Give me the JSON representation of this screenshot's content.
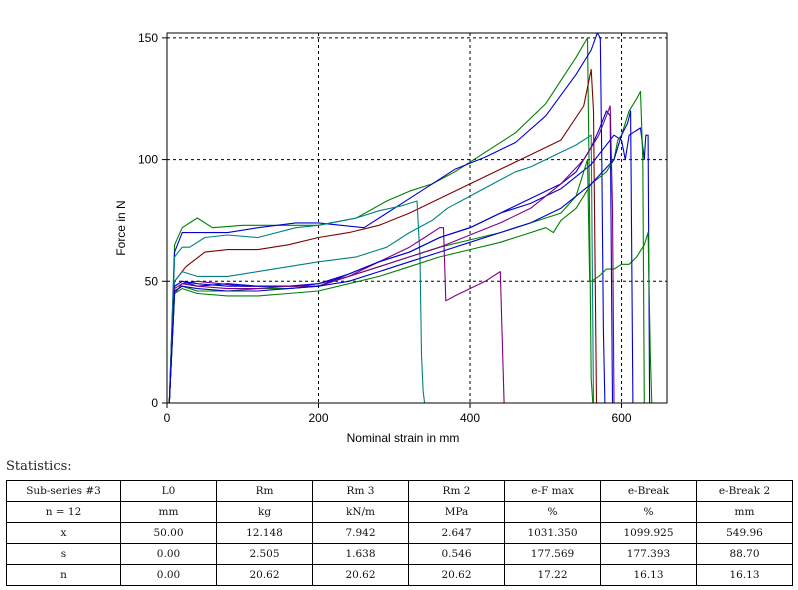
{
  "chart_data": {
    "type": "line",
    "title": "",
    "xlabel": "Nominal strain in mm",
    "ylabel": "Force in N",
    "xlim": [
      0,
      660
    ],
    "ylim": [
      0,
      152
    ],
    "xticks": [
      0,
      200,
      400,
      600
    ],
    "yticks": [
      0,
      50,
      100,
      150
    ],
    "grid": true,
    "series": [
      {
        "name": "specimen-1",
        "color": "#008000",
        "x": [
          3,
          10,
          20,
          30,
          40,
          60,
          100,
          150,
          200,
          250,
          290,
          320,
          350,
          380,
          420,
          460,
          500,
          540,
          555,
          557,
          560,
          562
        ],
        "y": [
          0,
          65,
          72,
          74,
          76,
          72,
          73,
          73,
          73,
          76,
          83,
          87,
          90,
          95,
          103,
          111,
          123,
          142,
          150,
          100,
          10,
          0
        ]
      },
      {
        "name": "specimen-2",
        "color": "#0000d0",
        "x": [
          3,
          10,
          20,
          40,
          80,
          120,
          170,
          200,
          230,
          260,
          300,
          340,
          380,
          420,
          460,
          500,
          540,
          560,
          568,
          572,
          574,
          576,
          578
        ],
        "y": [
          0,
          62,
          70,
          70,
          70,
          72,
          74,
          74,
          73,
          72,
          80,
          88,
          96,
          101,
          107,
          118,
          135,
          145,
          152,
          150,
          100,
          30,
          0
        ]
      },
      {
        "name": "specimen-3",
        "color": "#800000",
        "x": [
          3,
          10,
          25,
          50,
          80,
          120,
          160,
          200,
          240,
          280,
          320,
          360,
          400,
          440,
          480,
          520,
          550,
          560,
          563,
          565,
          567
        ],
        "y": [
          0,
          50,
          56,
          62,
          63,
          63,
          65,
          68,
          70,
          73,
          78,
          84,
          90,
          96,
          102,
          108,
          122,
          137,
          120,
          60,
          0
        ]
      },
      {
        "name": "specimen-4",
        "color": "#008080",
        "x": [
          3,
          10,
          20,
          30,
          50,
          80,
          120,
          170,
          200,
          250,
          280,
          310,
          320,
          330,
          334,
          336,
          338,
          340
        ],
        "y": [
          0,
          60,
          64,
          64,
          68,
          69,
          68,
          72,
          73,
          76,
          79,
          81,
          82,
          83,
          60,
          20,
          5,
          0
        ]
      },
      {
        "name": "specimen-5",
        "color": "#800080",
        "x": [
          3,
          10,
          20,
          40,
          70,
          100,
          130,
          170,
          200,
          240,
          280,
          320,
          340,
          360,
          365,
          368,
          380,
          420,
          440,
          445
        ],
        "y": [
          0,
          45,
          49,
          50,
          49,
          48,
          48,
          48,
          49,
          52,
          58,
          64,
          68,
          72,
          72,
          42,
          44,
          50,
          54,
          0
        ]
      },
      {
        "name": "specimen-6",
        "color": "#008080",
        "x": [
          3,
          10,
          20,
          40,
          80,
          120,
          160,
          200,
          250,
          290,
          320,
          350,
          370,
          400,
          430,
          460,
          480,
          500,
          520,
          540,
          560,
          563
        ],
        "y": [
          0,
          50,
          54,
          52,
          52,
          54,
          56,
          58,
          60,
          64,
          70,
          75,
          80,
          85,
          90,
          95,
          97,
          100,
          103,
          106,
          110,
          0
        ]
      },
      {
        "name": "specimen-7",
        "color": "#0000d0",
        "x": [
          3,
          10,
          20,
          40,
          80,
          120,
          160,
          200,
          240,
          280,
          320,
          360,
          400,
          440,
          480,
          520,
          560,
          590,
          600,
          605,
          610,
          625,
          630,
          632,
          635,
          637
        ],
        "y": [
          0,
          48,
          50,
          48,
          49,
          48,
          48,
          48,
          53,
          58,
          62,
          68,
          72,
          78,
          82,
          88,
          98,
          110,
          108,
          100,
          110,
          113,
          100,
          110,
          110,
          0
        ]
      },
      {
        "name": "specimen-8",
        "color": "#008000",
        "x": [
          3,
          10,
          20,
          40,
          80,
          120,
          160,
          200,
          240,
          280,
          320,
          360,
          400,
          440,
          480,
          520,
          540,
          550,
          555,
          558,
          560,
          570,
          580,
          590,
          600,
          610,
          620,
          630,
          635,
          638,
          640
        ],
        "y": [
          0,
          46,
          48,
          46,
          46,
          47,
          47,
          48,
          52,
          56,
          60,
          64,
          67,
          70,
          74,
          78,
          85,
          95,
          100,
          50,
          50,
          52,
          55,
          55,
          57,
          57,
          60,
          65,
          70,
          20,
          0
        ]
      },
      {
        "name": "specimen-9",
        "color": "#0000d0",
        "x": [
          3,
          10,
          20,
          40,
          80,
          120,
          160,
          200,
          240,
          280,
          320,
          360,
          400,
          440,
          480,
          520,
          540,
          560,
          570,
          580,
          585,
          588
        ],
        "y": [
          0,
          48,
          50,
          49,
          48,
          48,
          48,
          49,
          53,
          58,
          62,
          68,
          72,
          78,
          84,
          90,
          95,
          105,
          112,
          120,
          118,
          0
        ]
      },
      {
        "name": "specimen-10",
        "color": "#800080",
        "x": [
          3,
          10,
          20,
          40,
          80,
          120,
          160,
          200,
          240,
          280,
          320,
          360,
          400,
          440,
          480,
          520,
          550,
          570,
          580,
          585,
          588,
          590
        ],
        "y": [
          0,
          47,
          49,
          48,
          47,
          47,
          48,
          48,
          52,
          56,
          60,
          64,
          69,
          74,
          80,
          90,
          100,
          110,
          118,
          122,
          80,
          0
        ]
      },
      {
        "name": "specimen-11",
        "color": "#008000",
        "x": [
          3,
          10,
          20,
          40,
          80,
          120,
          160,
          200,
          240,
          280,
          320,
          360,
          400,
          440,
          480,
          500,
          510,
          520,
          540,
          560,
          580,
          590,
          595,
          600,
          605,
          610,
          620,
          625,
          628,
          630
        ],
        "y": [
          0,
          45,
          47,
          45,
          44,
          44,
          45,
          46,
          49,
          52,
          56,
          60,
          63,
          66,
          70,
          72,
          70,
          75,
          80,
          90,
          95,
          100,
          108,
          110,
          115,
          120,
          125,
          128,
          100,
          0
        ]
      },
      {
        "name": "specimen-12",
        "color": "#0000d0",
        "x": [
          3,
          10,
          20,
          40,
          80,
          120,
          160,
          200,
          240,
          280,
          320,
          360,
          400,
          440,
          480,
          520,
          560,
          590,
          600,
          608,
          612,
          615
        ],
        "y": [
          0,
          46,
          48,
          47,
          46,
          46,
          47,
          48,
          50,
          54,
          58,
          62,
          66,
          70,
          74,
          80,
          90,
          100,
          110,
          115,
          120,
          0
        ]
      }
    ]
  },
  "statistics": {
    "title": "Statistics:",
    "header": [
      "Sub-series #3",
      "L0",
      "Rm",
      "Rm 3",
      "Rm 2",
      "e-F max",
      "e-Break",
      "e-Break 2"
    ],
    "units": [
      "n = 12",
      "mm",
      "kg",
      "kN/m",
      "MPa",
      "%",
      "%",
      "mm"
    ],
    "rows": [
      [
        "x",
        "50.00",
        "12.148",
        "7.942",
        "2.647",
        "1031.350",
        "1099.925",
        "549.96"
      ],
      [
        "s",
        "0.00",
        "2.505",
        "1.638",
        "0.546",
        "177.569",
        "177.393",
        "88.70"
      ],
      [
        "n",
        "0.00",
        "20.62",
        "20.62",
        "20.62",
        "17.22",
        "16.13",
        "16.13"
      ]
    ]
  }
}
